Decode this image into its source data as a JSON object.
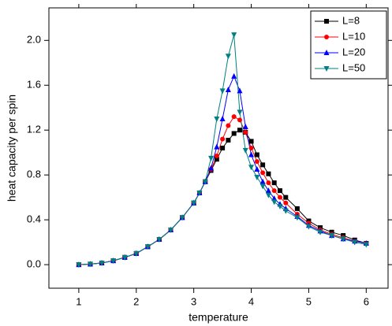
{
  "chart_data": {
    "type": "line",
    "x_label": "temperature",
    "y_label": "heat capacity per spin",
    "x": [
      1.0,
      1.2,
      1.4,
      1.6,
      1.8,
      2.0,
      2.2,
      2.4,
      2.6,
      2.8,
      3.0,
      3.1,
      3.2,
      3.3,
      3.4,
      3.5,
      3.6,
      3.7,
      3.8,
      3.9,
      4.0,
      4.1,
      4.2,
      4.3,
      4.4,
      4.5,
      4.6,
      4.8,
      5.0,
      5.2,
      5.4,
      5.6,
      5.8,
      6.0
    ],
    "series": [
      {
        "name": "L=8",
        "color": "#000000",
        "marker": "square",
        "values": [
          0,
          0.005,
          0.015,
          0.035,
          0.065,
          0.1,
          0.16,
          0.225,
          0.31,
          0.42,
          0.55,
          0.64,
          0.74,
          0.84,
          0.94,
          1.04,
          1.11,
          1.17,
          1.2,
          1.18,
          1.1,
          0.98,
          0.89,
          0.81,
          0.73,
          0.66,
          0.6,
          0.5,
          0.39,
          0.33,
          0.29,
          0.26,
          0.22,
          0.19
        ]
      },
      {
        "name": "L=10",
        "color": "#ff0000",
        "marker": "circle",
        "values": [
          0,
          0.005,
          0.015,
          0.035,
          0.065,
          0.1,
          0.16,
          0.225,
          0.31,
          0.42,
          0.55,
          0.64,
          0.74,
          0.85,
          0.97,
          1.12,
          1.24,
          1.32,
          1.29,
          1.18,
          1.04,
          0.92,
          0.82,
          0.73,
          0.66,
          0.6,
          0.55,
          0.45,
          0.37,
          0.31,
          0.27,
          0.24,
          0.21,
          0.19
        ]
      },
      {
        "name": "L=20",
        "color": "#0000ff",
        "marker": "triangle-up",
        "values": [
          0,
          0.005,
          0.015,
          0.035,
          0.065,
          0.1,
          0.16,
          0.225,
          0.31,
          0.42,
          0.55,
          0.64,
          0.74,
          0.86,
          1.05,
          1.3,
          1.56,
          1.68,
          1.55,
          1.23,
          0.98,
          0.85,
          0.74,
          0.66,
          0.59,
          0.54,
          0.5,
          0.43,
          0.35,
          0.3,
          0.26,
          0.23,
          0.21,
          0.19
        ]
      },
      {
        "name": "L=50",
        "color": "#008080",
        "marker": "triangle-down",
        "values": [
          0,
          0.005,
          0.015,
          0.035,
          0.065,
          0.1,
          0.16,
          0.225,
          0.31,
          0.42,
          0.55,
          0.64,
          0.74,
          0.95,
          1.3,
          1.55,
          1.86,
          2.05,
          1.36,
          1.02,
          0.87,
          0.78,
          0.7,
          0.62,
          0.56,
          0.52,
          0.48,
          0.42,
          0.34,
          0.29,
          0.26,
          0.23,
          0.2,
          0.18
        ]
      }
    ],
    "xlim": [
      0.48,
      6.38
    ],
    "xticks": [
      1,
      2,
      3,
      4,
      5,
      6
    ],
    "ylim": [
      -0.21,
      2.29
    ],
    "yticks": [
      {
        "value": 0,
        "label": "0.0"
      },
      0.4,
      0.8,
      1.2,
      1.6,
      {
        "value": 2,
        "label": "2.0"
      }
    ],
    "grid": false,
    "legend": "upper right"
  }
}
